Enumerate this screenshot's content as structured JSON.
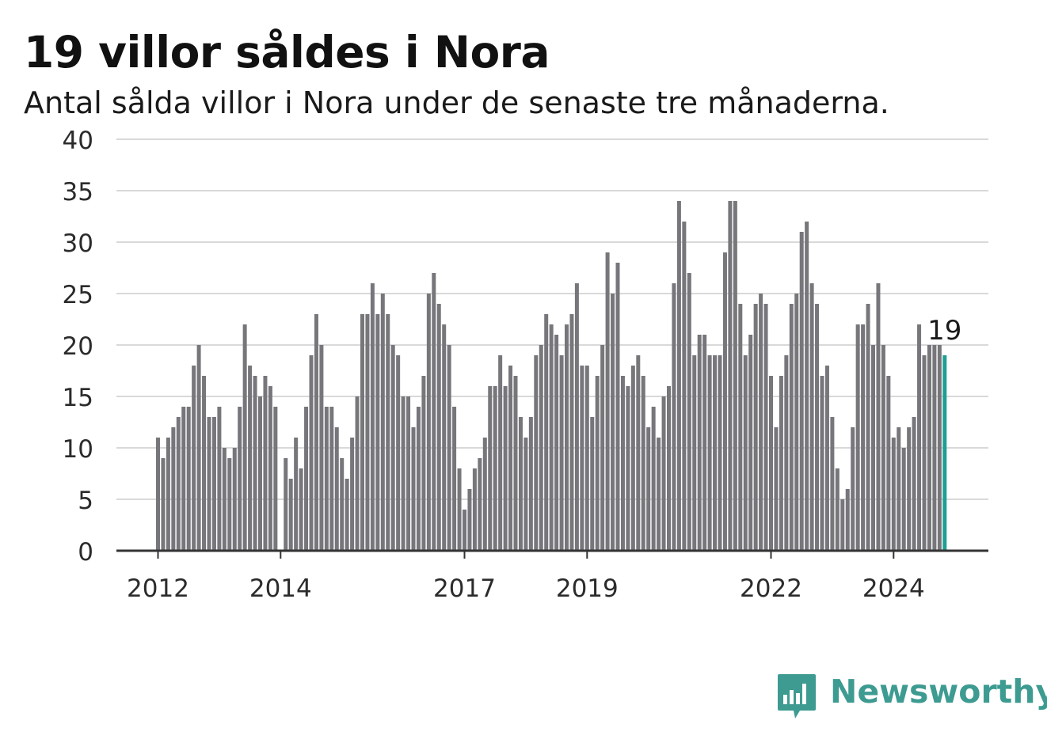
{
  "title": "19 villor såldes i Nora",
  "subtitle": "Antal sålda villor i Nora under de senaste tre månaderna.",
  "brand": {
    "name": "Newsworthy",
    "icon": "newsworthy-logo-icon",
    "color": "#3d9b91"
  },
  "colors": {
    "bar": "#77767b",
    "highlight": "#1e9e94",
    "grid": "#d9d9d9",
    "axis": "#333333"
  },
  "chart_data": {
    "type": "bar",
    "x_start": "2012-01",
    "x_end": "2024-10",
    "values": [
      11,
      9,
      11,
      12,
      13,
      14,
      14,
      18,
      20,
      17,
      13,
      13,
      14,
      10,
      9,
      10,
      14,
      22,
      18,
      17,
      15,
      17,
      16,
      14,
      0,
      9,
      7,
      11,
      8,
      14,
      19,
      23,
      20,
      14,
      14,
      12,
      9,
      7,
      11,
      15,
      23,
      23,
      26,
      23,
      25,
      23,
      20,
      19,
      15,
      15,
      12,
      14,
      17,
      25,
      27,
      24,
      22,
      20,
      14,
      8,
      4,
      6,
      8,
      9,
      11,
      16,
      16,
      19,
      16,
      18,
      17,
      13,
      11,
      13,
      19,
      20,
      23,
      22,
      21,
      19,
      22,
      23,
      26,
      18,
      18,
      13,
      17,
      20,
      29,
      25,
      28,
      17,
      16,
      18,
      19,
      17,
      12,
      14,
      11,
      15,
      16,
      26,
      34,
      32,
      27,
      19,
      21,
      21,
      19,
      19,
      19,
      29,
      34,
      34,
      24,
      19,
      21,
      24,
      25,
      24,
      17,
      12,
      17,
      19,
      24,
      25,
      31,
      32,
      26,
      24,
      17,
      18,
      13,
      8,
      5,
      6,
      12,
      22,
      22,
      24,
      20,
      26,
      20,
      17,
      11,
      12,
      10,
      12,
      13,
      22,
      19,
      20,
      20,
      20,
      19
    ],
    "highlight_last": true,
    "last_label": "19",
    "xticks": [
      "2012",
      "2014",
      "2017",
      "2019",
      "2022",
      "2024"
    ],
    "ylim": [
      0,
      40
    ],
    "yticks": [
      0,
      5,
      10,
      15,
      20,
      25,
      30,
      35,
      40
    ],
    "grid": true,
    "xlabel": "",
    "ylabel": ""
  }
}
